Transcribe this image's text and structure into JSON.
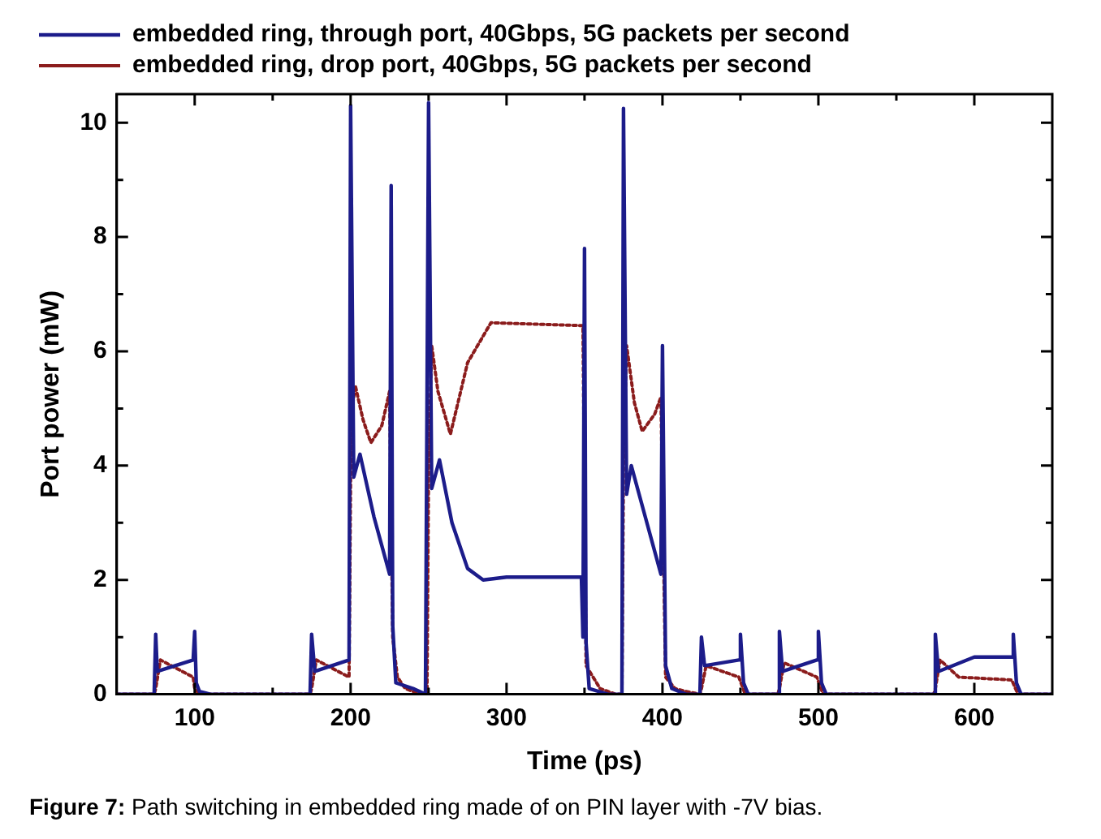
{
  "chart_data": {
    "type": "line",
    "xlabel": "Time (ps)",
    "ylabel": "Port power (mW)",
    "xlim": [
      50,
      650
    ],
    "ylim": [
      0,
      10.5
    ],
    "xticks": [
      100,
      {
        "value": 150,
        "label": null
      },
      200,
      {
        "value": 250,
        "label": null
      },
      300,
      {
        "value": 350,
        "label": null
      },
      400,
      {
        "value": 450,
        "label": null
      },
      500,
      {
        "value": 550,
        "label": null
      },
      600
    ],
    "yticks": [
      0,
      {
        "value": 1,
        "label": null
      },
      2,
      {
        "value": 3,
        "label": null
      },
      4,
      {
        "value": 5,
        "label": null
      },
      6,
      {
        "value": 7,
        "label": null
      },
      8,
      {
        "value": 9,
        "label": null
      },
      10
    ],
    "legend": "top left",
    "grid": false,
    "marker": "none",
    "annotations": [
      "Figure 7: Path switching in embedded ring made of on PIN layer with -7V bias."
    ],
    "series": [
      {
        "name": "embedded ring, through port, 40Gbps, 5G packets per second",
        "color": "#1c1c8a",
        "line_style": "solid",
        "x": [
          50,
          74,
          75,
          76,
          99,
          100,
          101,
          103,
          110,
          174,
          175,
          177,
          199,
          200,
          202,
          206,
          215,
          225,
          226,
          227,
          229,
          240,
          248,
          249,
          250,
          252,
          257,
          265,
          275,
          285,
          300,
          348,
          349,
          350,
          351,
          353,
          365,
          374,
          375,
          377,
          380,
          390,
          399,
          400,
          402,
          406,
          415,
          424,
          425,
          427,
          449,
          450,
          452,
          455,
          474,
          475,
          477,
          499,
          500,
          502,
          505,
          574,
          575,
          577,
          600,
          624,
          625,
          627,
          630,
          650
        ],
        "values": [
          0,
          0,
          1.05,
          0.4,
          0.6,
          1.1,
          0.2,
          0.05,
          0,
          0,
          1.05,
          0.4,
          0.6,
          10.3,
          3.8,
          4.2,
          3.1,
          2.1,
          8.9,
          1.2,
          0.2,
          0.1,
          0,
          0,
          10.35,
          3.6,
          4.1,
          3.0,
          2.2,
          2.0,
          2.05,
          2.05,
          1.0,
          7.8,
          0.9,
          0.1,
          0,
          0,
          10.25,
          3.5,
          4.0,
          3.0,
          2.1,
          6.1,
          0.5,
          0.1,
          0,
          0,
          1.0,
          0.5,
          0.6,
          1.05,
          0.2,
          0,
          0,
          1.1,
          0.4,
          0.6,
          1.1,
          0.2,
          0,
          0,
          1.05,
          0.4,
          0.65,
          0.65,
          1.05,
          0.2,
          0,
          0
        ]
      },
      {
        "name": "embedded ring, drop port, 40Gbps, 5G packets per second",
        "color": "#8b1c1c",
        "line_style": "dotted",
        "x": [
          50,
          74,
          75,
          78,
          99,
          100,
          103,
          174,
          175,
          178,
          199,
          200,
          201,
          203,
          208,
          213,
          220,
          225,
          227,
          230,
          235,
          245,
          249,
          250,
          252,
          256,
          264,
          275,
          290,
          349,
          351,
          360,
          370,
          374,
          375,
          377,
          382,
          387,
          395,
          399,
          402,
          408,
          415,
          424,
          425,
          428,
          449,
          453,
          474,
          475,
          478,
          499,
          503,
          574,
          575,
          578,
          590,
          624,
          628,
          650
        ],
        "values": [
          0,
          0,
          0.1,
          0.6,
          0.3,
          0.1,
          0,
          0,
          0.1,
          0.6,
          0.3,
          3.8,
          5.0,
          5.4,
          4.8,
          4.4,
          4.7,
          5.3,
          1.0,
          0.3,
          0.1,
          0,
          0,
          4.0,
          6.1,
          5.3,
          4.55,
          5.8,
          6.5,
          6.45,
          0.5,
          0.1,
          0,
          0,
          4.0,
          6.1,
          5.1,
          4.6,
          4.9,
          5.2,
          0.3,
          0.1,
          0.05,
          0,
          0.1,
          0.5,
          0.3,
          0,
          0,
          0.1,
          0.55,
          0.3,
          0,
          0,
          0.1,
          0.6,
          0.3,
          0.25,
          0,
          0
        ]
      }
    ]
  }
}
